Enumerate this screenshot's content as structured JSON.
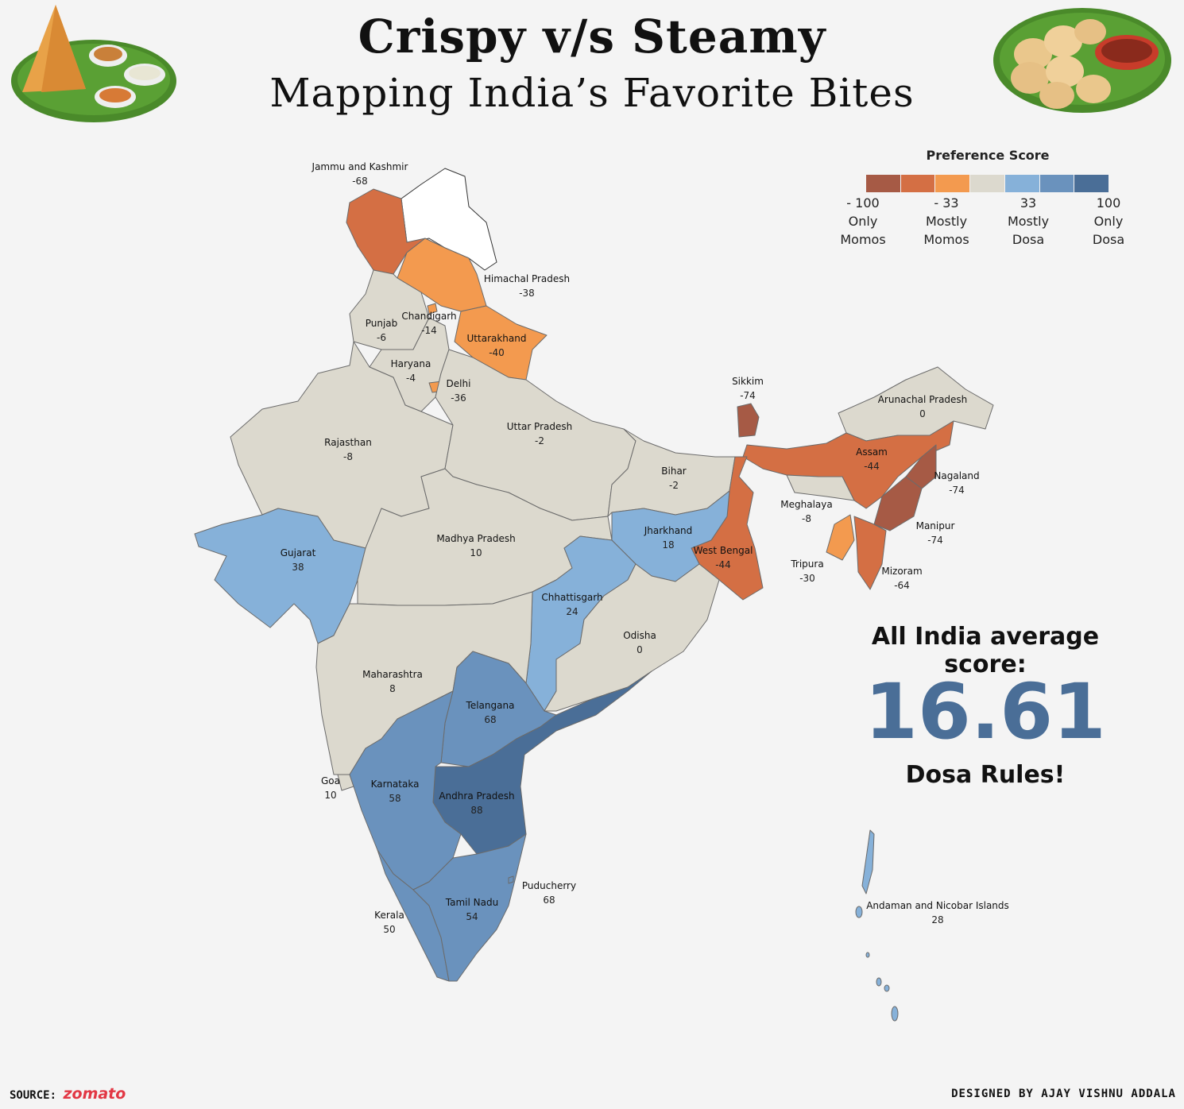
{
  "header": {
    "title": "Crispy v/s Steamy",
    "subtitle": "Mapping India’s Favorite Bites"
  },
  "legend": {
    "title": "Preference Score",
    "colors": [
      "#a65a45",
      "#d46f44",
      "#f39a4f",
      "#dcd9ce",
      "#86b1d9",
      "#6a92bd",
      "#4a6e97"
    ],
    "ticks": [
      {
        "value": "- 100",
        "line1": "Only",
        "line2": "Momos"
      },
      {
        "value": "- 33",
        "line1": "Mostly",
        "line2": "Momos"
      },
      {
        "value": "33",
        "line1": "Mostly",
        "line2": "Dosa"
      },
      {
        "value": "100",
        "line1": "Only",
        "line2": "Dosa"
      }
    ]
  },
  "states": [
    {
      "name": "Jammu and Kashmir",
      "score": "-68"
    },
    {
      "name": "Himachal Pradesh",
      "score": "-38"
    },
    {
      "name": "Punjab",
      "score": "-6"
    },
    {
      "name": "Chandigarh",
      "score": "-14"
    },
    {
      "name": "Uttarakhand",
      "score": "-40"
    },
    {
      "name": "Haryana",
      "score": "-4"
    },
    {
      "name": "Delhi",
      "score": "-36"
    },
    {
      "name": "Rajasthan",
      "score": "-8"
    },
    {
      "name": "Uttar Pradesh",
      "score": "-2"
    },
    {
      "name": "Bihar",
      "score": "-2"
    },
    {
      "name": "Sikkim",
      "score": "-74"
    },
    {
      "name": "Arunachal Pradesh",
      "score": "0"
    },
    {
      "name": "Assam",
      "score": "-44"
    },
    {
      "name": "Nagaland",
      "score": "-74"
    },
    {
      "name": "Meghalaya",
      "score": "-8"
    },
    {
      "name": "Manipur",
      "score": "-74"
    },
    {
      "name": "Tripura",
      "score": "-30"
    },
    {
      "name": "Mizoram",
      "score": "-64"
    },
    {
      "name": "West Bengal",
      "score": "-44"
    },
    {
      "name": "Jharkhand",
      "score": "18"
    },
    {
      "name": "Gujarat",
      "score": "38"
    },
    {
      "name": "Madhya Pradesh",
      "score": "10"
    },
    {
      "name": "Chhattisgarh",
      "score": "24"
    },
    {
      "name": "Odisha",
      "score": "0"
    },
    {
      "name": "Maharashtra",
      "score": "8"
    },
    {
      "name": "Telangana",
      "score": "68"
    },
    {
      "name": "Goa",
      "score": "10"
    },
    {
      "name": "Karnataka",
      "score": "58"
    },
    {
      "name": "Andhra Pradesh",
      "score": "88"
    },
    {
      "name": "Puducherry",
      "score": "68"
    },
    {
      "name": "Tamil Nadu",
      "score": "54"
    },
    {
      "name": "Kerala",
      "score": "50"
    },
    {
      "name": "Andaman and Nicobar Islands",
      "score": "28"
    }
  ],
  "summary": {
    "label": "All India average score:",
    "value": "16.61",
    "note": "Dosa Rules!"
  },
  "footer": {
    "source_label": "SOURCE:",
    "source_brand": "zomato",
    "credit": "DESIGNED BY AJAY VISHNU ADDALA"
  }
}
